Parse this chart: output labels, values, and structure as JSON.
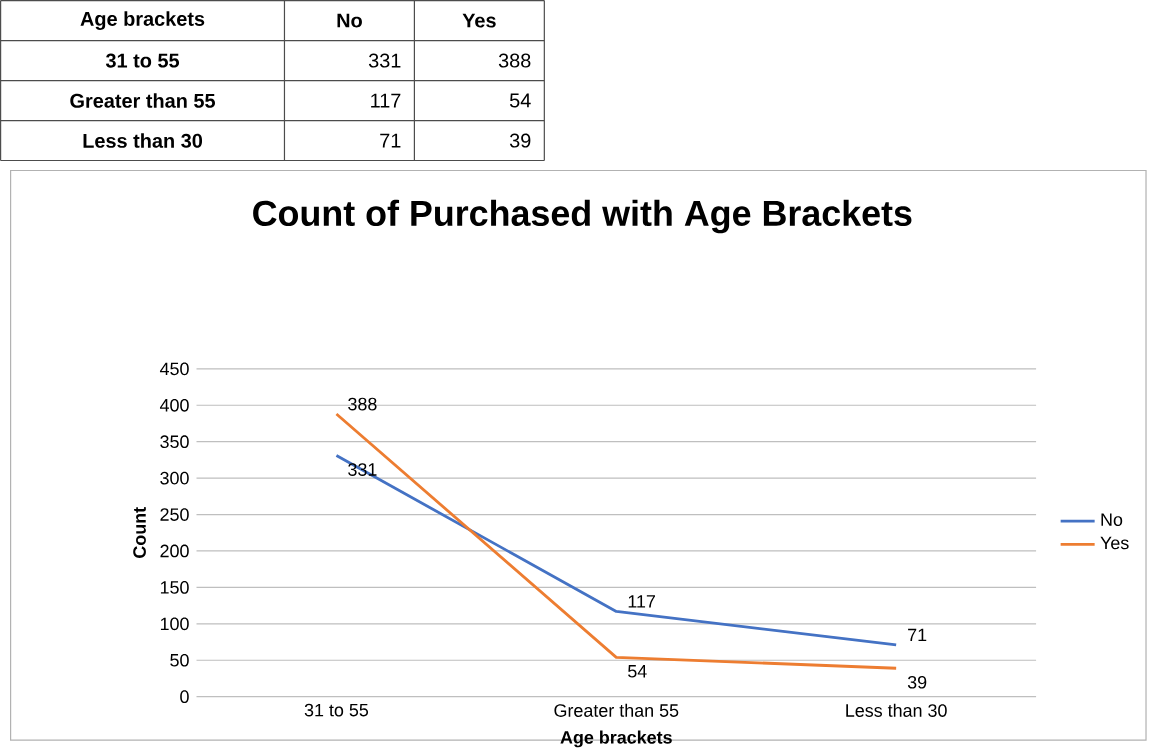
{
  "chart_data": {
    "type": "line",
    "title": "Count of Purchased with Age Brackets",
    "xlabel": "Age brackets",
    "ylabel": "Count",
    "categories": [
      "31 to 55",
      "Greater than 55",
      "Less than 30"
    ],
    "series": [
      {
        "name": "No",
        "color": "#4472c4",
        "values": [
          331,
          117,
          71
        ],
        "value_labels": [
          "331",
          "117",
          "71"
        ]
      },
      {
        "name": "Yes",
        "color": "#ed7d31",
        "values": [
          388,
          54,
          39
        ],
        "value_labels": [
          "388",
          "54",
          "39"
        ]
      }
    ],
    "ylim": [
      0,
      450
    ],
    "yticks": [
      0,
      50,
      100,
      150,
      200,
      250,
      300,
      350,
      400,
      450
    ],
    "grid": "y",
    "legend": "right",
    "marker": "none",
    "line_style": "solid"
  }
}
